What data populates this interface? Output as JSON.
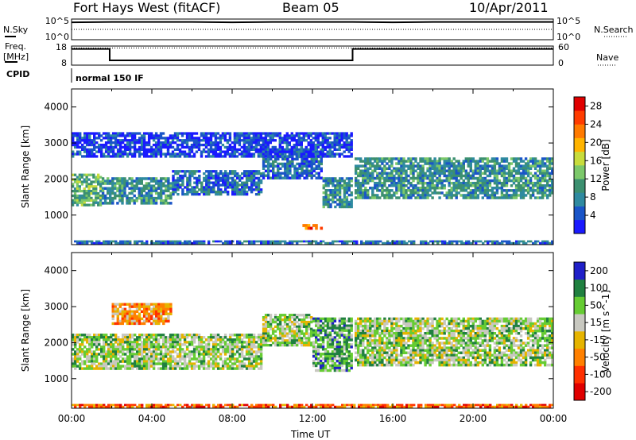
{
  "header": {
    "station": "Fort Hays West (fitACF)",
    "beam": "Beam 05",
    "date": "10/Apr/2011"
  },
  "left_labels": {
    "nsky": "N.Sky",
    "freq": "Freq.",
    "freq_unit": "[MHz]",
    "cpid": "CPID"
  },
  "right_labels": {
    "nsearch": "N.Search",
    "nave": "Nave"
  },
  "cpid_text": "normal 150 IF",
  "xaxis": {
    "title": "Time UT",
    "ticks": [
      "00:00",
      "04:00",
      "08:00",
      "12:00",
      "16:00",
      "20:00",
      "00:00"
    ]
  },
  "colors": {
    "power": [
      "#1a1aff",
      "#1a55c8",
      "#2f8aa0",
      "#3c9070",
      "#7cc86a",
      "#c8dc3c",
      "#ffb400",
      "#ff7a00",
      "#ff3c00",
      "#e00000"
    ],
    "velocity": [
      "#2020c8",
      "#208040",
      "#66cc33",
      "#c8c8c0",
      "#e6b400",
      "#ff8000",
      "#ff3000",
      "#e00000"
    ]
  },
  "chart_data": [
    {
      "type": "line",
      "panel": "noise",
      "left_axis": {
        "label": "N.Sky",
        "ticks": [
          "10^5",
          "10^0"
        ]
      },
      "right_axis": {
        "label": "N.Search",
        "ticks": [
          "10^5",
          "10^0"
        ]
      },
      "series": [
        {
          "name": "N.Sky",
          "x": [
            0,
            2,
            4,
            6,
            8,
            10,
            12,
            14,
            16,
            18,
            20,
            22,
            24
          ],
          "values": [
            4.2,
            4.3,
            4.3,
            4.3,
            4.2,
            4.3,
            4.3,
            4.3,
            4.2,
            4.3,
            4.3,
            4.3,
            4.3
          ]
        },
        {
          "name": "N.Search",
          "x": [
            0,
            4,
            8,
            12,
            16,
            20,
            24
          ],
          "values": [
            2.5,
            2.5,
            2.5,
            2.5,
            2.5,
            2.5,
            2.5
          ]
        }
      ]
    },
    {
      "type": "line",
      "panel": "frequency",
      "left_axis": {
        "label": "Freq. [MHz]",
        "ticks": [
          18,
          8
        ],
        "range": [
          8,
          18
        ]
      },
      "right_axis": {
        "label": "Nave",
        "ticks": [
          60,
          0
        ],
        "range": [
          0,
          60
        ]
      },
      "series": [
        {
          "name": "Freq.",
          "x": [
            0,
            1.9,
            1.9,
            14,
            14,
            24
          ],
          "values": [
            16.5,
            16.5,
            10.5,
            10.5,
            16.5,
            16.5
          ]
        },
        {
          "name": "Nave",
          "x": [
            0,
            24
          ],
          "values": [
            54,
            54
          ]
        }
      ]
    },
    {
      "type": "heatmap",
      "panel": "power",
      "ylabel": "Slant Range [km]",
      "yticks": [
        1000,
        2000,
        3000,
        4000
      ],
      "ylim": [
        180,
        4500
      ],
      "xlim": [
        0,
        24
      ],
      "colorbar": {
        "label": "Power [dB]",
        "ticks": [
          4,
          8,
          12,
          16,
          20,
          24,
          28
        ],
        "range": [
          0,
          30
        ]
      },
      "regions": [
        {
          "t0": 0,
          "t1": 1.5,
          "r0": 1250,
          "r1": 2150,
          "value": 14
        },
        {
          "t0": 1.5,
          "t1": 5,
          "r0": 1300,
          "r1": 2050,
          "value": 10
        },
        {
          "t0": 5,
          "t1": 9.5,
          "r0": 1550,
          "r1": 2250,
          "value": 8
        },
        {
          "t0": 9.5,
          "t1": 12.5,
          "r0": 2000,
          "r1": 2850,
          "value": 6
        },
        {
          "t0": 12.5,
          "t1": 14,
          "r0": 1200,
          "r1": 2050,
          "value": 10
        },
        {
          "t0": 14.1,
          "t1": 24,
          "r0": 1450,
          "r1": 2600,
          "value": 9
        },
        {
          "t0": 0,
          "t1": 14,
          "r0": 2600,
          "r1": 3300,
          "value": 4
        },
        {
          "t0": 11.5,
          "t1": 12.5,
          "r0": 600,
          "r1": 750,
          "value": 26
        },
        {
          "t0": 0,
          "t1": 24,
          "r0": 200,
          "r1": 300,
          "value": 6
        }
      ]
    },
    {
      "type": "heatmap",
      "panel": "velocity",
      "ylabel": "Slant Range [km]",
      "yticks": [
        1000,
        2000,
        3000,
        4000
      ],
      "ylim": [
        180,
        4500
      ],
      "xlim": [
        0,
        24
      ],
      "colorbar": {
        "label": "Velocity [m s^-1]",
        "ticks": [
          200,
          100,
          50,
          15,
          -15,
          -50,
          -100,
          -200
        ],
        "range": [
          -250,
          250
        ]
      },
      "regions": [
        {
          "t0": 0,
          "t1": 9.5,
          "r0": 1250,
          "r1": 2250,
          "value": 0
        },
        {
          "t0": 2,
          "t1": 5,
          "r0": 2500,
          "r1": 3100,
          "value": -70
        },
        {
          "t0": 9.5,
          "t1": 12,
          "r0": 1900,
          "r1": 2800,
          "value": 0
        },
        {
          "t0": 12,
          "t1": 14,
          "r0": 1200,
          "r1": 2700,
          "value": 40
        },
        {
          "t0": 14.1,
          "t1": 24,
          "r0": 1350,
          "r1": 2700,
          "value": 0
        },
        {
          "t0": 0,
          "t1": 24,
          "r0": 200,
          "r1": 300,
          "value": -80
        }
      ]
    }
  ]
}
